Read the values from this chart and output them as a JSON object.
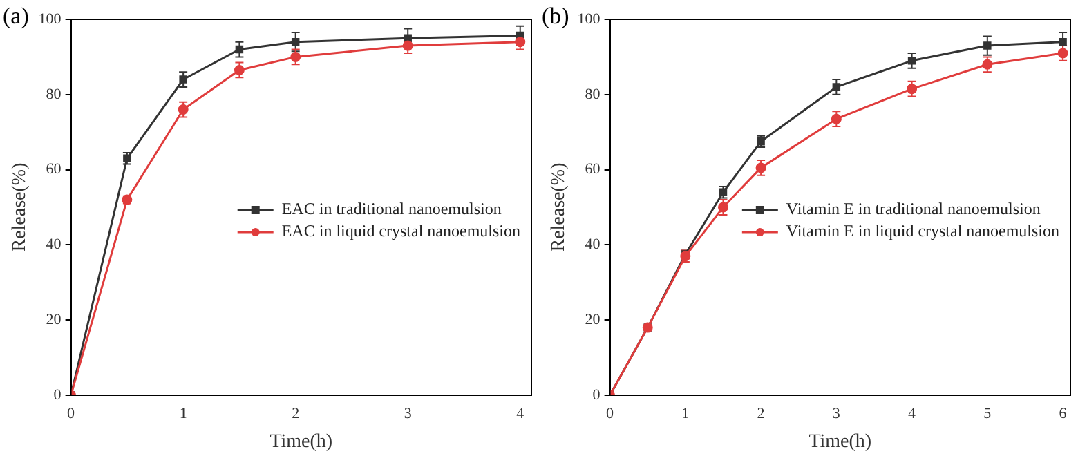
{
  "chart_data": [
    {
      "type": "line",
      "title": "(a)",
      "xlabel": "Time(h)",
      "ylabel": "Release(%)",
      "x": [
        0,
        0.5,
        1,
        1.5,
        2,
        3,
        4
      ],
      "xlim": [
        0,
        4.1
      ],
      "xticks": [
        0,
        1,
        2,
        3,
        4
      ],
      "ylim": [
        0,
        100
      ],
      "yticks": [
        0,
        20,
        40,
        60,
        80,
        100
      ],
      "grid": false,
      "legend": "center right",
      "series": [
        {
          "name": "EAC in traditional nanoemulsion",
          "color": "#333333",
          "marker": "square",
          "values": [
            0,
            63,
            84,
            92,
            94,
            95,
            95.7
          ],
          "errors": [
            null,
            1.5,
            2,
            2,
            2.5,
            2.5,
            2.5
          ]
        },
        {
          "name": "EAC in liquid crystal nanoemulsion",
          "color": "#e03c3c",
          "marker": "circle",
          "values": [
            0,
            52,
            76,
            86.5,
            90,
            93,
            94
          ],
          "errors": [
            null,
            1,
            2,
            2,
            2,
            2,
            2
          ]
        }
      ]
    },
    {
      "type": "line",
      "title": "(b)",
      "xlabel": "Time(h)",
      "ylabel": "Release(%)",
      "x": [
        0,
        0.5,
        1,
        1.5,
        2,
        3,
        4,
        5,
        6
      ],
      "xlim": [
        0,
        6.1
      ],
      "xticks": [
        0,
        1,
        2,
        3,
        4,
        5,
        6
      ],
      "ylim": [
        0,
        100
      ],
      "yticks": [
        0,
        20,
        40,
        60,
        80,
        100
      ],
      "grid": false,
      "legend": "center right",
      "series": [
        {
          "name": "Vitamin E in traditional nanoemulsion",
          "color": "#333333",
          "marker": "square",
          "values": [
            0,
            18,
            37.5,
            54,
            67.5,
            82,
            89,
            93,
            94
          ],
          "errors": [
            null,
            null,
            1,
            1.5,
            1.5,
            2,
            2,
            2.5,
            2.5
          ]
        },
        {
          "name": "Vitamin E in liquid crystal nanoemulsion",
          "color": "#e03c3c",
          "marker": "circle",
          "values": [
            0,
            18,
            37,
            50,
            60.5,
            73.5,
            81.5,
            88,
            91
          ],
          "errors": [
            null,
            null,
            1.5,
            2,
            2,
            2,
            2,
            2,
            2
          ]
        }
      ]
    }
  ]
}
